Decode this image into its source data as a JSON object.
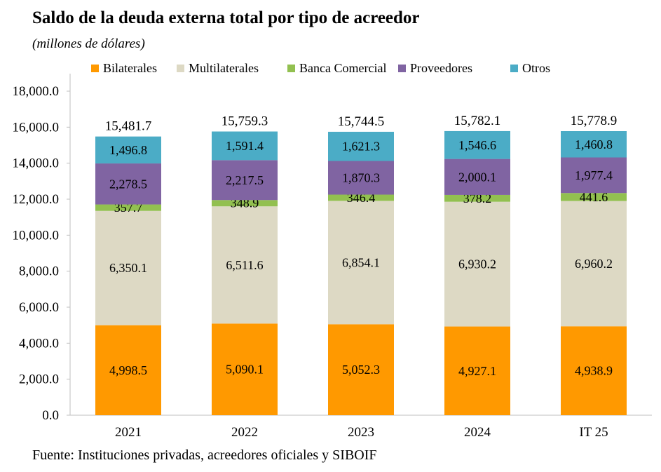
{
  "title": "Saldo de la deuda externa total por tipo de acreedor",
  "subtitle": "(millones de dólares)",
  "source": "Fuente: Instituciones privadas, acreedores oficiales y SIBOIF",
  "colors": {
    "Bilaterales": "#FF9900",
    "Multilaterales": "#DDD9C4",
    "Banca Comercial": "#92C050",
    "Proveedores": "#8064A2",
    "Otros": "#4BACC6",
    "axis": "#BFBFBF"
  },
  "chart_data": {
    "type": "bar",
    "stacked": true,
    "categories": [
      "2021",
      "2022",
      "2023",
      "2024",
      "IT 25"
    ],
    "series": [
      {
        "name": "Bilaterales",
        "values": [
          4998.5,
          5090.1,
          5052.3,
          4927.1,
          4938.9
        ],
        "labels": [
          "4,998.5",
          "5,090.1",
          "5,052.3",
          "4,927.1",
          "4,938.9"
        ]
      },
      {
        "name": "Multilaterales",
        "values": [
          6350.1,
          6511.6,
          6854.1,
          6930.2,
          6960.2
        ],
        "labels": [
          "6,350.1",
          "6,511.6",
          "6,854.1",
          "6,930.2",
          "6,960.2"
        ]
      },
      {
        "name": "Banca Comercial",
        "values": [
          357.7,
          348.9,
          346.4,
          378.2,
          441.6
        ],
        "labels": [
          "357.7",
          "348.9",
          "346.4",
          "378.2",
          "441.6"
        ]
      },
      {
        "name": "Proveedores",
        "values": [
          2278.5,
          2217.5,
          1870.3,
          2000.1,
          1977.4
        ],
        "labels": [
          "2,278.5",
          "2,217.5",
          "1,870.3",
          "2,000.1",
          "1,977.4"
        ]
      },
      {
        "name": "Otros",
        "values": [
          1496.8,
          1591.4,
          1621.3,
          1546.6,
          1460.8
        ],
        "labels": [
          "1,496.8",
          "1,591.4",
          "1,621.3",
          "1,546.6",
          "1,460.8"
        ]
      }
    ],
    "totals": [
      15481.7,
      15759.3,
      15744.5,
      15782.1,
      15778.9
    ],
    "total_labels": [
      "15,481.7",
      "15,759.3",
      "15,744.5",
      "15,782.1",
      "15,778.9"
    ],
    "ylim": [
      0,
      18000
    ],
    "yticks": [
      "0.0",
      "2,000.0",
      "4,000.0",
      "6,000.0",
      "8,000.0",
      "10,000.0",
      "12,000.0",
      "14,000.0",
      "16,000.0",
      "18,000.0"
    ],
    "ytick_values": [
      0,
      2000,
      4000,
      6000,
      8000,
      10000,
      12000,
      14000,
      16000,
      18000
    ],
    "grid": false,
    "legend": "top"
  }
}
